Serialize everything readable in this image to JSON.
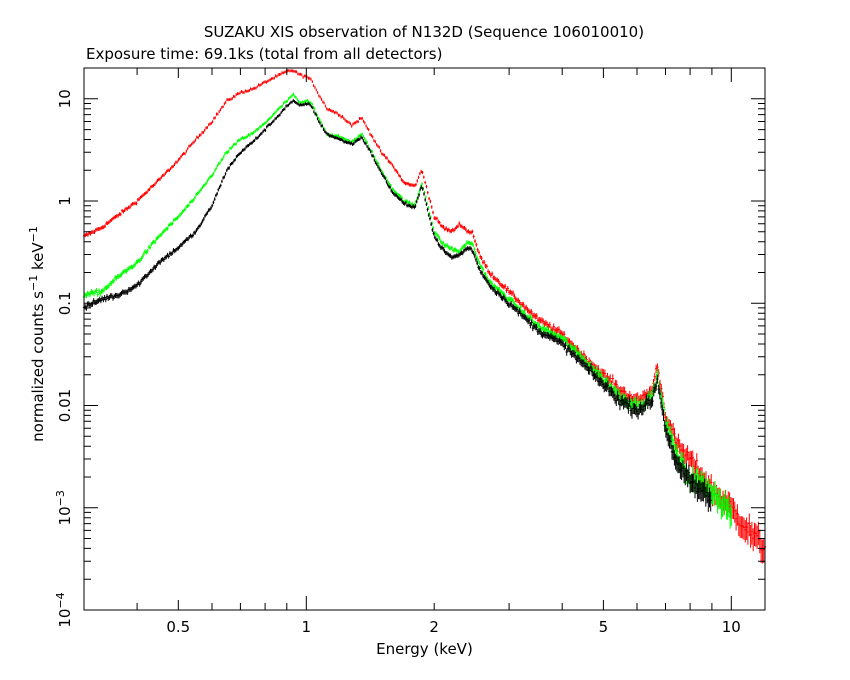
{
  "chart_data": {
    "type": "scatter",
    "title": "SUZAKU XIS observation of N132D (Sequence 106010010)",
    "subtitle": "Exposure time: 69.1ks (total from all detectors)",
    "xlabel": "Energy (keV)",
    "ylabel": {
      "prefix": "normalized counts s",
      "sup1": "−1",
      "middle": " keV",
      "sup2": "−1"
    },
    "x_scale": "log",
    "y_scale": "log",
    "xlim": [
      0.3,
      12
    ],
    "ylim": [
      0.0001,
      20
    ],
    "x_ticks": [
      {
        "value": 0.5,
        "label": "0.5"
      },
      {
        "value": 1,
        "label": "1"
      },
      {
        "value": 2,
        "label": "2"
      },
      {
        "value": 5,
        "label": "5"
      },
      {
        "value": 10,
        "label": "10"
      }
    ],
    "y_ticks": [
      {
        "value": 10,
        "label": "10"
      },
      {
        "value": 1,
        "label": "1"
      },
      {
        "value": 0.1,
        "label": "0.1"
      },
      {
        "value": 0.01,
        "label": "0.01"
      },
      {
        "value": 0.001,
        "label": "10",
        "exp": "−3"
      },
      {
        "value": 0.0001,
        "label": "10",
        "exp": "−4"
      }
    ],
    "grid": false,
    "legend": "none",
    "series": [
      {
        "color": "#ff0000",
        "points": [
          [
            0.3,
            0.45
          ],
          [
            0.33,
            0.55
          ],
          [
            0.36,
            0.72
          ],
          [
            0.4,
            1.0
          ],
          [
            0.45,
            1.6
          ],
          [
            0.5,
            2.5
          ],
          [
            0.55,
            4.0
          ],
          [
            0.6,
            6.0
          ],
          [
            0.65,
            9.5
          ],
          [
            0.7,
            11.5
          ],
          [
            0.75,
            12.5
          ],
          [
            0.8,
            14.5
          ],
          [
            0.85,
            16.5
          ],
          [
            0.9,
            18.5
          ],
          [
            0.93,
            19.0
          ],
          [
            0.97,
            17.0
          ],
          [
            1.0,
            16.5
          ],
          [
            1.03,
            15.0
          ],
          [
            1.07,
            11.0
          ],
          [
            1.12,
            8.0
          ],
          [
            1.2,
            7.0
          ],
          [
            1.28,
            5.5
          ],
          [
            1.35,
            6.5
          ],
          [
            1.4,
            5.0
          ],
          [
            1.5,
            3.0
          ],
          [
            1.6,
            2.2
          ],
          [
            1.7,
            1.5
          ],
          [
            1.8,
            1.4
          ],
          [
            1.87,
            2.0
          ],
          [
            1.9,
            1.6
          ],
          [
            2.0,
            0.7
          ],
          [
            2.1,
            0.55
          ],
          [
            2.2,
            0.5
          ],
          [
            2.3,
            0.6
          ],
          [
            2.4,
            0.5
          ],
          [
            2.46,
            0.5
          ],
          [
            2.55,
            0.3
          ],
          [
            2.7,
            0.2
          ],
          [
            3.0,
            0.13
          ],
          [
            3.5,
            0.07
          ],
          [
            4.0,
            0.05
          ],
          [
            4.5,
            0.03
          ],
          [
            5.0,
            0.02
          ],
          [
            5.5,
            0.014
          ],
          [
            6.0,
            0.011
          ],
          [
            6.5,
            0.014
          ],
          [
            6.7,
            0.025
          ],
          [
            7.0,
            0.008
          ],
          [
            7.5,
            0.004
          ],
          [
            8.0,
            0.003
          ],
          [
            9.0,
            0.0015
          ],
          [
            10.0,
            0.001
          ],
          [
            11.0,
            0.0006
          ],
          [
            12.0,
            0.0004
          ]
        ]
      },
      {
        "color": "#00ff00",
        "points": [
          [
            0.3,
            0.12
          ],
          [
            0.33,
            0.13
          ],
          [
            0.36,
            0.18
          ],
          [
            0.4,
            0.25
          ],
          [
            0.45,
            0.45
          ],
          [
            0.5,
            0.7
          ],
          [
            0.55,
            1.1
          ],
          [
            0.6,
            1.8
          ],
          [
            0.65,
            3.0
          ],
          [
            0.7,
            4.0
          ],
          [
            0.75,
            4.6
          ],
          [
            0.8,
            5.8
          ],
          [
            0.85,
            7.5
          ],
          [
            0.9,
            9.5
          ],
          [
            0.93,
            11.0
          ],
          [
            0.97,
            9.0
          ],
          [
            1.0,
            9.5
          ],
          [
            1.03,
            9.0
          ],
          [
            1.07,
            6.5
          ],
          [
            1.12,
            4.5
          ],
          [
            1.2,
            4.2
          ],
          [
            1.28,
            3.8
          ],
          [
            1.35,
            4.5
          ],
          [
            1.4,
            3.5
          ],
          [
            1.5,
            2.0
          ],
          [
            1.6,
            1.3
          ],
          [
            1.7,
            1.0
          ],
          [
            1.8,
            0.9
          ],
          [
            1.87,
            1.5
          ],
          [
            1.9,
            1.2
          ],
          [
            2.0,
            0.5
          ],
          [
            2.1,
            0.38
          ],
          [
            2.2,
            0.34
          ],
          [
            2.3,
            0.32
          ],
          [
            2.4,
            0.4
          ],
          [
            2.46,
            0.38
          ],
          [
            2.55,
            0.25
          ],
          [
            2.7,
            0.16
          ],
          [
            3.0,
            0.11
          ],
          [
            3.5,
            0.06
          ],
          [
            4.0,
            0.045
          ],
          [
            4.5,
            0.028
          ],
          [
            5.0,
            0.018
          ],
          [
            5.5,
            0.012
          ],
          [
            6.0,
            0.01
          ],
          [
            6.5,
            0.012
          ],
          [
            6.7,
            0.02
          ],
          [
            7.0,
            0.007
          ],
          [
            7.5,
            0.003
          ],
          [
            8.0,
            0.002
          ],
          [
            9.0,
            0.0015
          ],
          [
            10.0,
            0.0009
          ]
        ]
      },
      {
        "color": "#000000",
        "points": [
          [
            0.3,
            0.09
          ],
          [
            0.33,
            0.11
          ],
          [
            0.36,
            0.12
          ],
          [
            0.4,
            0.15
          ],
          [
            0.45,
            0.25
          ],
          [
            0.5,
            0.35
          ],
          [
            0.55,
            0.5
          ],
          [
            0.6,
            0.9
          ],
          [
            0.65,
            2.0
          ],
          [
            0.7,
            3.0
          ],
          [
            0.75,
            3.8
          ],
          [
            0.8,
            5.0
          ],
          [
            0.85,
            6.5
          ],
          [
            0.9,
            8.5
          ],
          [
            0.93,
            9.5
          ],
          [
            0.97,
            8.5
          ],
          [
            1.0,
            9.0
          ],
          [
            1.03,
            8.5
          ],
          [
            1.07,
            6.0
          ],
          [
            1.12,
            4.5
          ],
          [
            1.2,
            4.0
          ],
          [
            1.28,
            3.6
          ],
          [
            1.35,
            4.2
          ],
          [
            1.4,
            3.3
          ],
          [
            1.5,
            1.9
          ],
          [
            1.6,
            1.2
          ],
          [
            1.7,
            0.95
          ],
          [
            1.8,
            0.85
          ],
          [
            1.87,
            1.4
          ],
          [
            1.9,
            1.1
          ],
          [
            2.0,
            0.45
          ],
          [
            2.1,
            0.33
          ],
          [
            2.2,
            0.28
          ],
          [
            2.3,
            0.3
          ],
          [
            2.4,
            0.35
          ],
          [
            2.46,
            0.33
          ],
          [
            2.55,
            0.22
          ],
          [
            2.7,
            0.15
          ],
          [
            3.0,
            0.1
          ],
          [
            3.5,
            0.055
          ],
          [
            4.0,
            0.04
          ],
          [
            4.5,
            0.025
          ],
          [
            5.0,
            0.016
          ],
          [
            5.5,
            0.011
          ],
          [
            6.0,
            0.009
          ],
          [
            6.5,
            0.011
          ],
          [
            6.7,
            0.018
          ],
          [
            7.0,
            0.006
          ],
          [
            7.5,
            0.0025
          ],
          [
            8.0,
            0.0018
          ],
          [
            9.0,
            0.0012
          ]
        ]
      }
    ]
  }
}
